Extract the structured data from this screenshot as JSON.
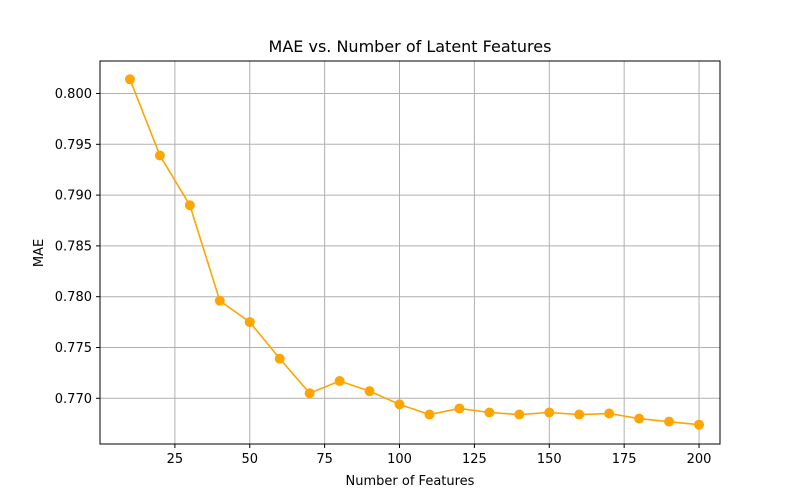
{
  "chart_data": {
    "type": "line",
    "title": "MAE vs. Number of Latent Features",
    "xlabel": "Number of Features",
    "ylabel": "MAE",
    "xlim": [
      0,
      207
    ],
    "ylim": [
      0.7655,
      0.8032
    ],
    "xticks": [
      25,
      50,
      75,
      100,
      125,
      150,
      175,
      200
    ],
    "yticks": [
      0.77,
      0.775,
      0.78,
      0.785,
      0.79,
      0.795,
      0.8
    ],
    "grid": true,
    "series": [
      {
        "color": "#FFA500",
        "marker": "circle",
        "x": [
          10,
          20,
          30,
          40,
          50,
          60,
          70,
          80,
          90,
          100,
          110,
          120,
          130,
          140,
          150,
          160,
          170,
          180,
          190,
          200
        ],
        "y": [
          0.8014,
          0.7939,
          0.789,
          0.7796,
          0.7775,
          0.7739,
          0.7705,
          0.7717,
          0.7707,
          0.7694,
          0.7684,
          0.769,
          0.7686,
          0.7684,
          0.7686,
          0.7684,
          0.7685,
          0.768,
          0.7677,
          0.7674
        ]
      }
    ]
  }
}
